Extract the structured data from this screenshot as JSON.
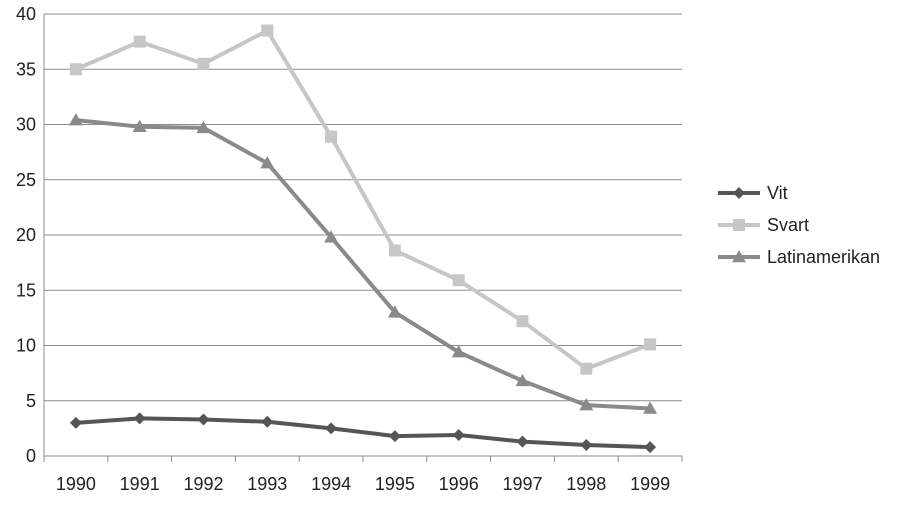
{
  "chart_data": {
    "type": "line",
    "title": "",
    "xlabel": "",
    "ylabel": "",
    "categories": [
      "1990",
      "1991",
      "1992",
      "1993",
      "1994",
      "1995",
      "1996",
      "1997",
      "1998",
      "1999"
    ],
    "ylim": [
      0,
      40
    ],
    "yticks": [
      0,
      5,
      10,
      15,
      20,
      25,
      30,
      35,
      40
    ],
    "grid": true,
    "legend_position": "right",
    "series": [
      {
        "name": "Vit",
        "marker": "diamond",
        "color": "#555555",
        "values": [
          3.0,
          3.4,
          3.3,
          3.1,
          2.5,
          1.8,
          1.9,
          1.3,
          1.0,
          0.8
        ]
      },
      {
        "name": "Svart",
        "marker": "square",
        "color": "#c6c6c6",
        "values": [
          35.0,
          37.5,
          35.5,
          38.5,
          28.9,
          18.6,
          15.9,
          12.2,
          7.9,
          10.1
        ]
      },
      {
        "name": "Latinamerikan",
        "marker": "triangle",
        "color": "#8a8a8a",
        "values": [
          30.4,
          29.8,
          29.7,
          26.5,
          19.8,
          13.0,
          9.4,
          6.8,
          4.6,
          4.3
        ]
      }
    ]
  }
}
